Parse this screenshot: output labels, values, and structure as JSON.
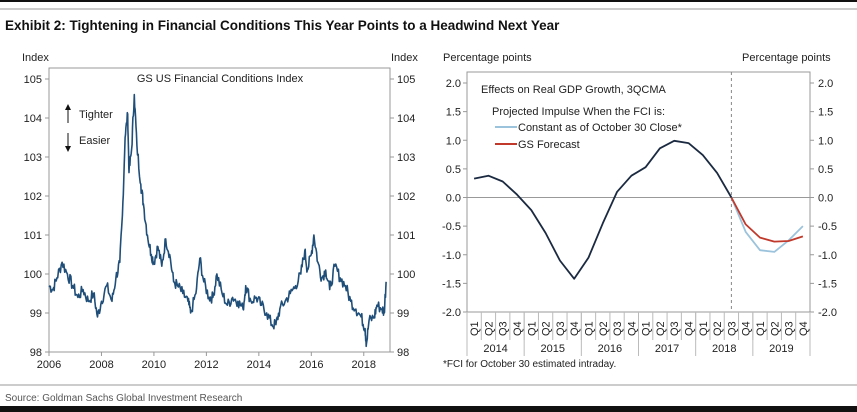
{
  "title": "Exhibit 2: Tightening in Financial Conditions This Year Points to a Headwind Next Year",
  "source": "Source: Goldman Sachs Global Investment Research",
  "chart_data": [
    {
      "type": "line",
      "title": "GS US Financial Conditions Index",
      "ylabel_left": "Index",
      "ylabel_right": "Index",
      "xlim": [
        2006,
        2019
      ],
      "ylim": [
        98,
        105
      ],
      "xticks": [
        "2006",
        "2008",
        "2010",
        "2012",
        "2014",
        "2016",
        "2018"
      ],
      "yticks": [
        "98",
        "99",
        "100",
        "101",
        "102",
        "103",
        "104",
        "105"
      ],
      "annotations": {
        "up": "Tighter",
        "down": "Easier"
      },
      "grid": false,
      "color": "#1f4e79",
      "x": [
        2006.0,
        2006.15,
        2006.3,
        2006.5,
        2006.7,
        2006.9,
        2007.1,
        2007.3,
        2007.5,
        2007.7,
        2007.85,
        2008.0,
        2008.2,
        2008.4,
        2008.55,
        2008.7,
        2008.8,
        2008.9,
        2009.0,
        2009.05,
        2009.15,
        2009.25,
        2009.35,
        2009.5,
        2009.6,
        2009.75,
        2009.9,
        2010.0,
        2010.15,
        2010.3,
        2010.45,
        2010.6,
        2010.75,
        2010.9,
        2011.1,
        2011.3,
        2011.4,
        2011.6,
        2011.75,
        2011.9,
        2012.1,
        2012.25,
        2012.4,
        2012.6,
        2012.8,
        2013.0,
        2013.2,
        2013.4,
        2013.5,
        2013.7,
        2013.9,
        2014.1,
        2014.3,
        2014.5,
        2014.65,
        2014.8,
        2015.0,
        2015.2,
        2015.4,
        2015.6,
        2015.75,
        2015.85,
        2016.0,
        2016.1,
        2016.25,
        2016.4,
        2016.55,
        2016.7,
        2016.9,
        2017.1,
        2017.3,
        2017.5,
        2017.7,
        2017.9,
        2018.05,
        2018.1,
        2018.2,
        2018.4,
        2018.5,
        2018.7,
        2018.78,
        2018.85
      ],
      "y": [
        99.7,
        99.6,
        99.9,
        100.3,
        100.0,
        99.7,
        99.4,
        99.6,
        99.3,
        99.5,
        98.9,
        99.3,
        99.7,
        99.3,
        99.9,
        100.3,
        101.5,
        103.5,
        104.1,
        102.6,
        103.2,
        104.6,
        103.3,
        102.3,
        101.8,
        101.0,
        100.5,
        100.3,
        100.7,
        100.2,
        100.9,
        100.5,
        99.8,
        99.7,
        99.5,
        99.3,
        99.0,
        99.5,
        100.4,
        99.8,
        99.4,
        99.4,
        100.0,
        99.5,
        99.2,
        99.4,
        99.3,
        99.1,
        99.7,
        99.3,
        99.4,
        99.2,
        99.0,
        98.7,
        98.7,
        99.1,
        99.3,
        99.5,
        99.7,
        100.0,
        100.6,
        100.1,
        100.5,
        101.0,
        100.3,
        99.9,
        100.1,
        99.6,
        100.2,
        99.9,
        99.7,
        99.3,
        99.1,
        98.9,
        98.6,
        98.2,
        98.8,
        98.9,
        99.2,
        99.1,
        99.0,
        99.8
      ]
    },
    {
      "type": "line",
      "title": "Effects on Real GDP Growth, 3QCMA",
      "legend_title": "Projected Impulse When the FCI is:",
      "ylabel_left": "Percentage points",
      "ylabel_right": "Percentage points",
      "ylim": [
        -2.0,
        2.0
      ],
      "yticks": [
        "2.0",
        "1.5",
        "1.0",
        "0.5",
        "0.0",
        "-0.5",
        "-1.0",
        "-1.5",
        "-2.0"
      ],
      "quarters": [
        "Q1",
        "Q2",
        "Q3",
        "Q4",
        "Q1",
        "Q2",
        "Q3",
        "Q4",
        "Q1",
        "Q2",
        "Q3",
        "Q4",
        "Q1",
        "Q2",
        "Q3",
        "Q4",
        "Q1",
        "Q2",
        "Q3",
        "Q4",
        "Q1",
        "Q2",
        "Q3",
        "Q4"
      ],
      "years": [
        "2014",
        "2015",
        "2016",
        "2017",
        "2018",
        "2019"
      ],
      "forecast_start": "2018 Q3",
      "legend_placement": "top-left",
      "footnote": "*FCI for October 30 estimated intraday.",
      "series": [
        {
          "name": "",
          "color": "#1b2a41",
          "start_index": 0,
          "values": [
            0.33,
            0.38,
            0.28,
            0.05,
            -0.22,
            -0.62,
            -1.1,
            -1.42,
            -1.05,
            -0.45,
            0.1,
            0.38,
            0.53,
            0.86,
            0.99,
            0.95,
            0.74,
            0.43,
            0.0
          ]
        },
        {
          "name": "Constant as of October 30 Close*",
          "color": "#9cc3dc",
          "start_index": 18,
          "values": [
            0.0,
            -0.6,
            -0.92,
            -0.95,
            -0.75,
            -0.5
          ]
        },
        {
          "name": "GS Forecast",
          "color": "#c0392b",
          "start_index": 18,
          "values": [
            0.0,
            -0.47,
            -0.7,
            -0.77,
            -0.76,
            -0.68
          ]
        }
      ]
    }
  ]
}
